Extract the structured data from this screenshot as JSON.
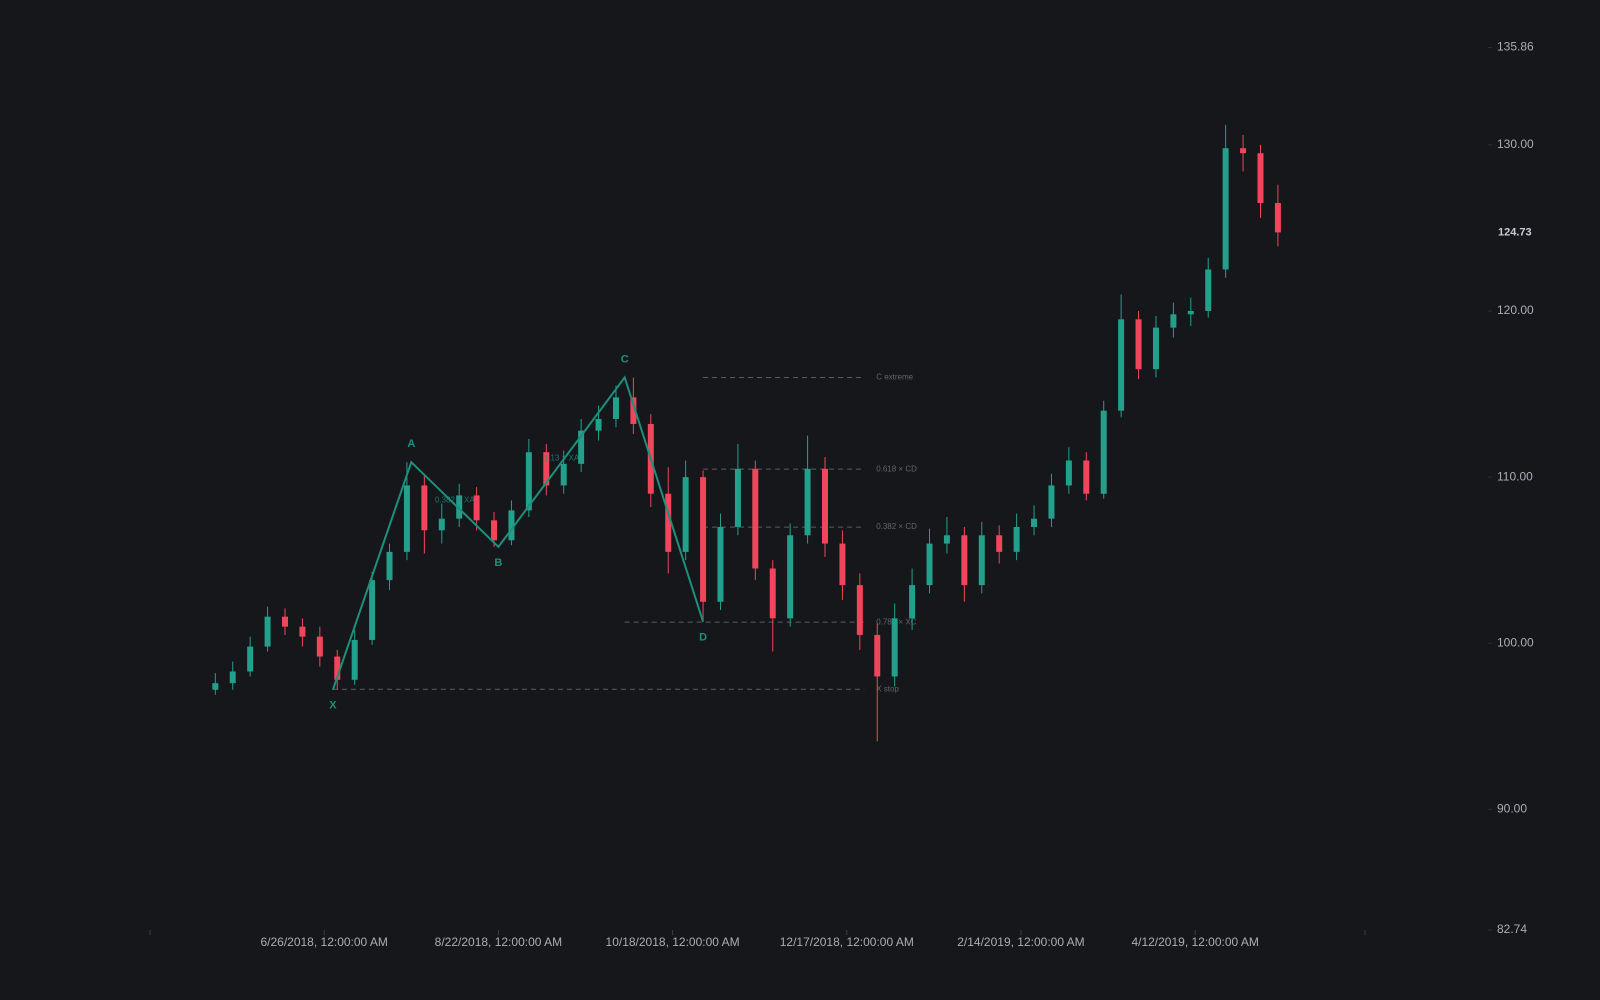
{
  "chart_data": {
    "type": "candlestick",
    "up_color": "#22a08c",
    "down_color": "#f0455a",
    "pattern_color": "#1d8f7c",
    "level_color": "#5a5d64",
    "xlim": [
      -15,
      264
    ],
    "ylim": [
      82.74,
      135.86
    ],
    "xticks": [
      {
        "value": 25,
        "label": "6/26/2018, 12:00:00 AM"
      },
      {
        "value": 65,
        "label": "8/22/2018, 12:00:00 AM"
      },
      {
        "value": 105,
        "label": "10/18/2018, 12:00:00 AM"
      },
      {
        "value": 145,
        "label": "12/17/2018, 12:00:00 AM"
      },
      {
        "value": 185,
        "label": "2/14/2019, 12:00:00 AM"
      },
      {
        "value": 225,
        "label": "4/12/2019, 12:00:00 AM"
      }
    ],
    "yticks": [
      82.74,
      {
        "value": 90,
        "label": "90.00"
      },
      {
        "value": 100,
        "label": "100.00"
      },
      {
        "value": 110,
        "label": "110.00"
      },
      {
        "value": 120,
        "label": "120.00"
      },
      {
        "value": 130,
        "label": "130.00"
      },
      135.86
    ],
    "x": [
      0,
      4,
      8,
      12,
      16,
      20,
      24,
      28,
      32,
      36,
      40,
      44,
      48,
      52,
      56,
      60,
      64,
      68,
      72,
      76,
      80,
      84,
      88,
      92,
      96,
      100,
      104,
      108,
      112,
      116,
      120,
      124,
      128,
      132,
      136,
      140,
      144,
      148,
      152,
      156,
      160,
      164,
      168,
      172,
      176,
      180,
      184,
      188,
      192,
      196,
      200,
      204,
      208,
      212,
      216,
      220,
      224,
      228,
      232,
      236,
      240,
      244
    ],
    "open": [
      97.2,
      97.6,
      98.3,
      99.8,
      101.6,
      101.0,
      100.4,
      99.2,
      97.8,
      100.2,
      103.8,
      105.5,
      109.5,
      106.8,
      107.5,
      108.9,
      107.4,
      106.2,
      108.0,
      111.5,
      109.5,
      110.8,
      112.8,
      113.5,
      114.8,
      113.2,
      109.0,
      105.5,
      110.0,
      102.5,
      107.0,
      110.5,
      104.5,
      101.5,
      106.5,
      110.5,
      106.0,
      103.5,
      100.5,
      98.0,
      101.5,
      103.5,
      106.0,
      106.5,
      103.5,
      106.5,
      105.5,
      107.0,
      107.5,
      109.5,
      111.0,
      109.0,
      114.0,
      119.5,
      116.5,
      119.0,
      119.8,
      120.0,
      122.5,
      129.8,
      129.5,
      126.5
    ],
    "high": [
      98.2,
      98.9,
      100.4,
      102.2,
      102.1,
      101.5,
      101.0,
      99.6,
      100.8,
      104.3,
      106.0,
      110.9,
      110.2,
      108.4,
      109.6,
      109.4,
      107.9,
      108.6,
      112.3,
      112.0,
      111.6,
      113.5,
      114.3,
      115.5,
      116.0,
      113.8,
      110.6,
      111.0,
      110.4,
      107.8,
      112.0,
      111.0,
      105.0,
      107.2,
      112.5,
      111.2,
      106.8,
      104.2,
      101.2,
      102.4,
      104.5,
      106.9,
      107.6,
      107.0,
      107.3,
      107.1,
      107.8,
      108.3,
      110.2,
      111.8,
      111.5,
      114.6,
      121.0,
      120.0,
      119.7,
      120.5,
      120.8,
      123.2,
      131.2,
      130.6,
      130.0,
      127.6
    ],
    "low": [
      96.9,
      97.2,
      98.0,
      99.5,
      100.5,
      99.8,
      98.6,
      97.2,
      97.5,
      99.9,
      103.2,
      105.0,
      105.4,
      106.0,
      107.0,
      106.8,
      105.8,
      105.9,
      107.6,
      108.9,
      109.0,
      110.3,
      112.2,
      113.0,
      112.6,
      108.2,
      104.2,
      105.0,
      101.3,
      102.0,
      106.5,
      103.8,
      99.5,
      101.0,
      106.0,
      105.2,
      102.6,
      99.6,
      94.1,
      97.4,
      100.8,
      103.0,
      105.4,
      102.5,
      103.0,
      104.8,
      105.0,
      106.5,
      107.0,
      109.0,
      108.6,
      108.7,
      113.6,
      115.9,
      116.0,
      118.4,
      119.1,
      119.6,
      122.0,
      128.4,
      125.6,
      123.9
    ],
    "close": [
      97.6,
      98.3,
      99.8,
      101.6,
      101.0,
      100.4,
      99.2,
      97.8,
      100.2,
      103.8,
      105.5,
      109.5,
      106.8,
      107.5,
      108.9,
      107.4,
      106.2,
      108.0,
      111.5,
      109.5,
      110.8,
      112.8,
      113.5,
      114.8,
      113.2,
      109.0,
      105.5,
      110.0,
      102.5,
      107.0,
      110.5,
      104.5,
      101.5,
      106.5,
      110.5,
      106.0,
      103.5,
      100.5,
      98.0,
      101.5,
      103.5,
      106.0,
      106.5,
      103.5,
      106.5,
      105.5,
      107.0,
      107.5,
      109.5,
      111.0,
      109.0,
      114.0,
      119.5,
      116.5,
      119.0,
      119.8,
      120.0,
      122.5,
      129.8,
      129.5,
      126.5,
      124.73
    ],
    "pattern": [
      {
        "label": "X",
        "x": 27,
        "y": 97.2
      },
      {
        "label": "A",
        "x": 45,
        "y": 110.9
      },
      {
        "label": "B",
        "x": 65,
        "y": 105.8
      },
      {
        "label": "C",
        "x": 94,
        "y": 116.0
      },
      {
        "label": "D",
        "x": 112,
        "y": 101.3
      }
    ],
    "ratios": [
      "0.382 × XA",
      "1.13 × XA"
    ],
    "levels": [
      {
        "label": "C extreme",
        "value": 116.0,
        "start": 112,
        "end": 149
      },
      {
        "label": "0.618 × CD",
        "value": 110.48,
        "start": 112,
        "end": 149
      },
      {
        "label": "0.382 × CD",
        "value": 106.99,
        "start": 112,
        "end": 149
      },
      {
        "label": "0.786 × XC",
        "value": 101.27,
        "start": 94,
        "end": 149
      },
      {
        "label": "X stop",
        "value": 97.23,
        "start": 27,
        "end": 149
      }
    ]
  }
}
